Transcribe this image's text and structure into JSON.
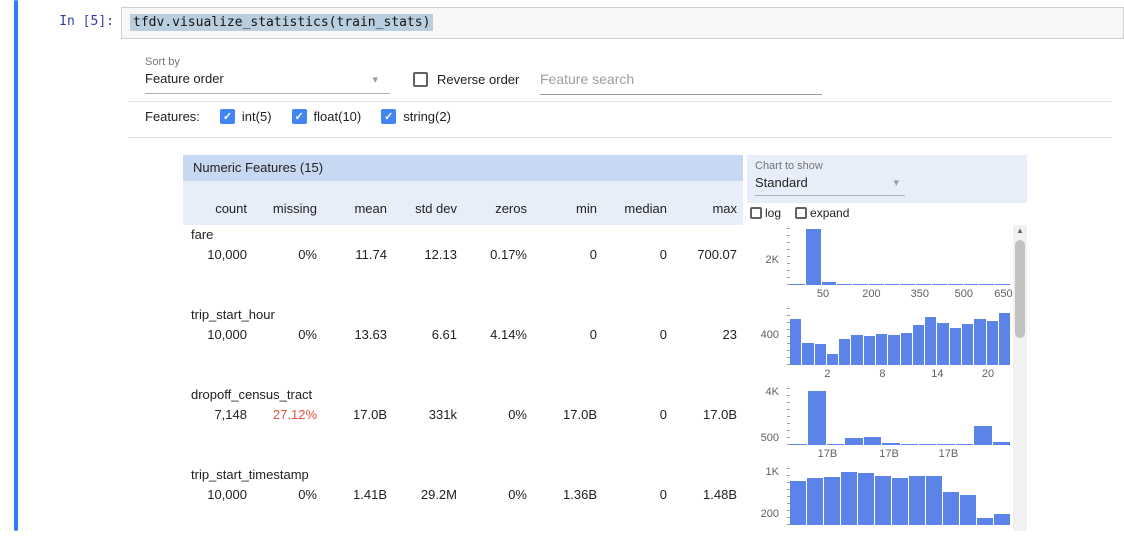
{
  "notebook": {
    "prompt": "In [5]:",
    "code": "tfdv.visualize_statistics(train_stats)"
  },
  "controls": {
    "sort_by_label": "Sort by",
    "sort_by_value": "Feature order",
    "reverse_order_label": "Reverse order",
    "search_placeholder": "Feature search",
    "features_label": "Features:",
    "feature_filters": [
      {
        "label": "int(5)",
        "checked": true
      },
      {
        "label": "float(10)",
        "checked": true
      },
      {
        "label": "string(2)",
        "checked": true
      }
    ]
  },
  "chart_controls": {
    "chart_to_show_label": "Chart to show",
    "chart_to_show_value": "Standard",
    "log_label": "log",
    "expand_label": "expand"
  },
  "table": {
    "title": "Numeric Features (15)",
    "columns": [
      "count",
      "missing",
      "mean",
      "std dev",
      "zeros",
      "min",
      "median",
      "max"
    ],
    "rows": [
      {
        "name": "fare",
        "values": [
          "10,000",
          "0%",
          "11.74",
          "12.13",
          "0.17%",
          "0",
          "0",
          "700.07"
        ],
        "missing_alert": false
      },
      {
        "name": "trip_start_hour",
        "values": [
          "10,000",
          "0%",
          "13.63",
          "6.61",
          "4.14%",
          "0",
          "0",
          "23"
        ],
        "missing_alert": false
      },
      {
        "name": "dropoff_census_tract",
        "values": [
          "7,148",
          "27.12%",
          "17.0B",
          "331k",
          "0%",
          "17.0B",
          "0",
          "17.0B"
        ],
        "missing_alert": true
      },
      {
        "name": "trip_start_timestamp",
        "values": [
          "10,000",
          "0%",
          "1.41B",
          "29.2M",
          "0%",
          "1.36B",
          "0",
          "1.48B"
        ],
        "missing_alert": false
      }
    ]
  },
  "chart_data": [
    {
      "type": "bar",
      "feature": "fare",
      "values": [
        30,
        4500,
        250,
        100,
        50,
        25,
        15,
        10,
        6,
        4,
        3,
        2,
        2,
        1
      ],
      "ymax": 4600,
      "y_ticks": [
        {
          "label": "2K",
          "value": 2000
        }
      ],
      "x_ticks": [
        {
          "label": "50",
          "pos": 0.15
        },
        {
          "label": "200",
          "pos": 0.37
        },
        {
          "label": "350",
          "pos": 0.59
        },
        {
          "label": "500",
          "pos": 0.79
        },
        {
          "label": "650",
          "pos": 0.97
        }
      ]
    },
    {
      "type": "bar",
      "feature": "trip_start_hour",
      "values": [
        620,
        300,
        280,
        150,
        350,
        400,
        390,
        420,
        400,
        430,
        540,
        640,
        560,
        500,
        550,
        620,
        590,
        700
      ],
      "ymax": 760,
      "y_ticks": [
        {
          "label": "400",
          "value": 400
        }
      ],
      "x_ticks": [
        {
          "label": "2",
          "pos": 0.17
        },
        {
          "label": "8",
          "pos": 0.42
        },
        {
          "label": "14",
          "pos": 0.67
        },
        {
          "label": "20",
          "pos": 0.9
        }
      ]
    },
    {
      "type": "bar",
      "feature": "dropoff_census_tract",
      "values": [
        100,
        4100,
        80,
        560,
        620,
        120,
        50,
        20,
        10,
        8,
        1450,
        260
      ],
      "ymax": 4300,
      "y_ticks": [
        {
          "label": "4K",
          "value": 4000
        },
        {
          "label": "500",
          "value": 500
        }
      ],
      "x_ticks": [
        {
          "label": "17B",
          "pos": 0.17
        },
        {
          "label": "17B",
          "pos": 0.45
        },
        {
          "label": "17B",
          "pos": 0.72
        }
      ]
    },
    {
      "type": "bar",
      "feature": "trip_start_timestamp",
      "values": [
        820,
        860,
        890,
        980,
        950,
        900,
        860,
        900,
        910,
        600,
        560,
        130,
        210
      ],
      "ymax": 1050,
      "y_ticks": [
        {
          "label": "1K",
          "value": 1000
        },
        {
          "label": "200",
          "value": 200
        }
      ],
      "x_ticks": []
    }
  ],
  "icons": {
    "dropdown_arrow": "▾",
    "checkmark": "✓",
    "scroll_up_arrow": "▲"
  },
  "colors": {
    "accent_blue": "#4285f4",
    "bar_blue": "#5b83e8",
    "alert_red": "#e25041",
    "header_blue": "#c7d8f3",
    "subheader_blue": "#e8eef9",
    "cell_indicator_blue": "#2e7bf6"
  }
}
